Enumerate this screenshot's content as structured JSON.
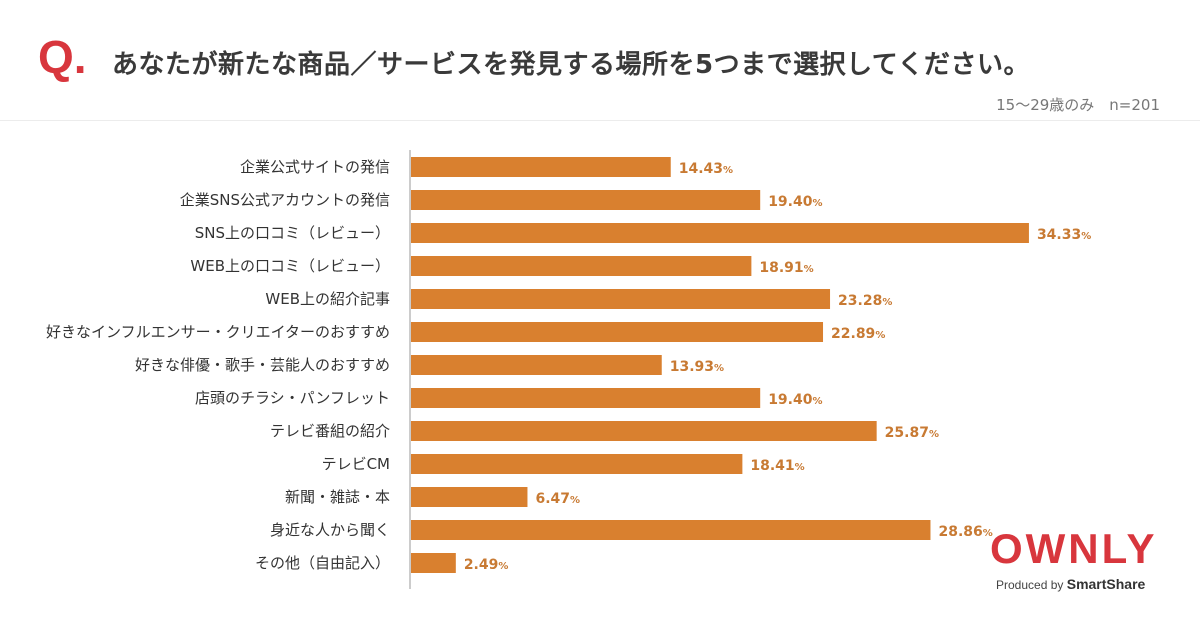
{
  "header": {
    "q_mark": "Q.",
    "title": "あなたが新たな商品／サービスを発見する場所を5つまで選択してください。",
    "subtitle": "15〜29歳のみ　n=201"
  },
  "chart_data": {
    "type": "bar",
    "orientation": "horizontal",
    "unit": "%",
    "bar_color": "#d9802f",
    "label_color": "#c87a33",
    "xlim": [
      0,
      36
    ],
    "categories": [
      "企業公式サイトの発信",
      "企業SNS公式アカウントの発信",
      "SNS上の口コミ（レビュー）",
      "WEB上の口コミ（レビュー）",
      "WEB上の紹介記事",
      "好きなインフルエンサー・クリエイターのおすすめ",
      "好きな俳優・歌手・芸能人のおすすめ",
      "店頭のチラシ・パンフレット",
      "テレビ番組の紹介",
      "テレビCM",
      "新聞・雑誌・本",
      "身近な人から聞く",
      "その他（自由記入）"
    ],
    "values": [
      14.43,
      19.4,
      34.33,
      18.91,
      23.28,
      22.89,
      13.93,
      19.4,
      25.87,
      18.41,
      6.47,
      28.86,
      2.49
    ],
    "value_labels": [
      "14.43",
      "19.40",
      "34.33",
      "18.91",
      "23.28",
      "22.89",
      "13.93",
      "19.40",
      "25.87",
      "18.41",
      "6.47",
      "28.86",
      "2.49"
    ]
  },
  "logo": {
    "brand": "OWNLY",
    "produced_by": "Produced by",
    "company": "SmartShare",
    "brand_color": "#d8363d"
  }
}
